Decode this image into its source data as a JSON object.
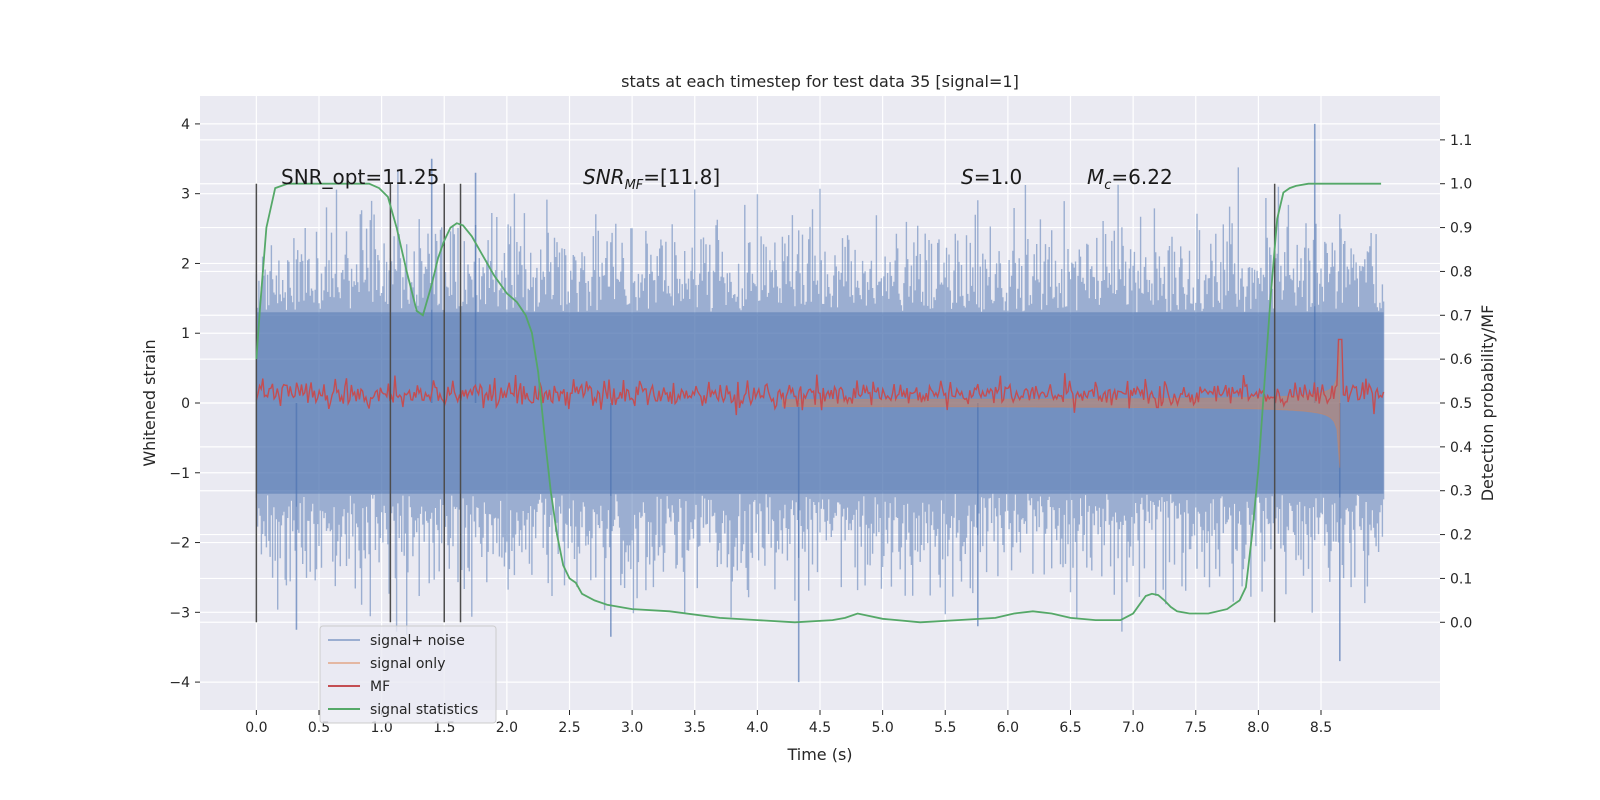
{
  "chart_data": {
    "type": "line",
    "title": "stats at each timestep for test data 35 [signal=1]",
    "xlabel": "Time (s)",
    "ylabel": "Whitened strain",
    "y2label": "Detection probability/MF",
    "xlim": [
      -0.45,
      9.45
    ],
    "ylim": [
      -4.4,
      4.4
    ],
    "y2lim": [
      -0.2,
      1.2
    ],
    "xticks": [
      0.0,
      0.5,
      1.0,
      1.5,
      2.0,
      2.5,
      3.0,
      3.5,
      4.0,
      4.5,
      5.0,
      5.5,
      6.0,
      6.5,
      7.0,
      7.5,
      8.0,
      8.5
    ],
    "xtick_labels": [
      "0.0",
      "0.5",
      "1.0",
      "1.5",
      "2.0",
      "2.5",
      "3.0",
      "3.5",
      "4.0",
      "4.5",
      "5.0",
      "5.5",
      "6.0",
      "6.5",
      "7.0",
      "7.5",
      "8.0",
      "8.5"
    ],
    "yticks": [
      -4,
      -3,
      -2,
      -1,
      0,
      1,
      2,
      3,
      4
    ],
    "ytick_labels": [
      "−4",
      "−3",
      "−2",
      "−1",
      "0",
      "1",
      "2",
      "3",
      "4"
    ],
    "y2ticks": [
      0.0,
      0.1,
      0.2,
      0.3,
      0.4,
      0.5,
      0.6,
      0.7,
      0.8,
      0.9,
      1.0,
      1.1
    ],
    "y2tick_labels": [
      "0.0",
      "0.1",
      "0.2",
      "0.3",
      "0.4",
      "0.5",
      "0.6",
      "0.7",
      "0.8",
      "0.9",
      "1.0",
      "1.1"
    ],
    "grid": true,
    "legend_position": "bottom-left",
    "series": [
      {
        "name": "signal+ noise",
        "style": "noise",
        "axis": "left",
        "color": "#4c72b0",
        "t_range": [
          0.0,
          9.0
        ],
        "typical_band": [
          -1.3,
          1.3
        ],
        "typical_peaks": [
          -2.5,
          2.5
        ],
        "extremes": [
          {
            "t": 4.33,
            "y": -4.0
          },
          {
            "t": 8.45,
            "y": 4.0
          },
          {
            "t": 8.65,
            "y": -3.7
          },
          {
            "t": 2.83,
            "y": -3.35
          },
          {
            "t": 1.4,
            "y": 3.5
          },
          {
            "t": 0.32,
            "y": -3.25
          },
          {
            "t": 5.76,
            "y": -3.2
          },
          {
            "t": 1.75,
            "y": 3.3
          }
        ]
      },
      {
        "name": "signal only",
        "style": "chirp",
        "axis": "left",
        "color": "#dd8452",
        "t_range": [
          4.2,
          8.65
        ],
        "start_amplitude": 0.03,
        "merger_amplitude": 1.25,
        "merger_time": 8.65
      },
      {
        "name": "MF",
        "style": "line",
        "axis": "right",
        "color": "#c44e52",
        "baseline": 0.52,
        "jitter": 0.015,
        "t_range": [
          0.0,
          9.0
        ],
        "peak": {
          "t": 8.65,
          "y": 0.645
        }
      },
      {
        "name": "signal statistics",
        "style": "line",
        "axis": "right",
        "color": "#55a868",
        "t": [
          0.0,
          0.03,
          0.08,
          0.15,
          0.25,
          0.4,
          0.6,
          0.8,
          0.9,
          0.98,
          1.05,
          1.12,
          1.2,
          1.28,
          1.33,
          1.4,
          1.45,
          1.5,
          1.55,
          1.6,
          1.65,
          1.72,
          1.8,
          1.9,
          2.0,
          2.08,
          2.15,
          2.2,
          2.25,
          2.3,
          2.35,
          2.4,
          2.45,
          2.5,
          2.55,
          2.6,
          2.7,
          2.8,
          3.0,
          3.3,
          3.7,
          4.0,
          4.3,
          4.6,
          4.7,
          4.8,
          5.0,
          5.3,
          5.6,
          5.9,
          6.05,
          6.2,
          6.35,
          6.5,
          6.7,
          6.9,
          7.0,
          7.05,
          7.1,
          7.15,
          7.2,
          7.25,
          7.3,
          7.35,
          7.45,
          7.6,
          7.75,
          7.8,
          7.85,
          7.9,
          7.95,
          8.0,
          8.05,
          8.1,
          8.15,
          8.2,
          8.25,
          8.3,
          8.4,
          8.5,
          8.6,
          8.7,
          8.8,
          8.9,
          8.98
        ],
        "y": [
          0.6,
          0.72,
          0.9,
          0.99,
          1.0,
          1.0,
          1.0,
          1.0,
          1.0,
          0.99,
          0.97,
          0.9,
          0.8,
          0.71,
          0.7,
          0.77,
          0.83,
          0.87,
          0.9,
          0.91,
          0.905,
          0.88,
          0.84,
          0.79,
          0.75,
          0.73,
          0.7,
          0.66,
          0.57,
          0.43,
          0.3,
          0.2,
          0.13,
          0.1,
          0.09,
          0.065,
          0.05,
          0.04,
          0.03,
          0.025,
          0.01,
          0.005,
          0.0,
          0.005,
          0.01,
          0.02,
          0.008,
          0.0,
          0.005,
          0.01,
          0.02,
          0.025,
          0.02,
          0.01,
          0.005,
          0.005,
          0.02,
          0.04,
          0.06,
          0.065,
          0.062,
          0.05,
          0.035,
          0.025,
          0.02,
          0.02,
          0.03,
          0.04,
          0.05,
          0.08,
          0.2,
          0.35,
          0.55,
          0.75,
          0.92,
          0.98,
          0.99,
          0.995,
          1.0,
          1.0,
          1.0,
          1.0,
          1.0,
          1.0,
          1.0
        ]
      }
    ],
    "vlines": [
      0.0,
      1.07,
      1.5,
      1.63,
      8.13
    ],
    "vline_color": "#4d4d4d",
    "annotations": {
      "snr_opt": "SNR_opt=11.25",
      "snr_mf_base": "SNR",
      "snr_mf_sub": "MF",
      "snr_mf_value": "=[11.8]",
      "s_var": "S",
      "s_value": "=1.0",
      "mc_var": "M",
      "mc_sub": "c",
      "mc_value": "=6.22"
    },
    "colors": {
      "plot_background": "#eaeaf2",
      "grid": "#ffffff",
      "legend_border": "#cccccc",
      "legend_background": "#eaeaf2"
    }
  }
}
